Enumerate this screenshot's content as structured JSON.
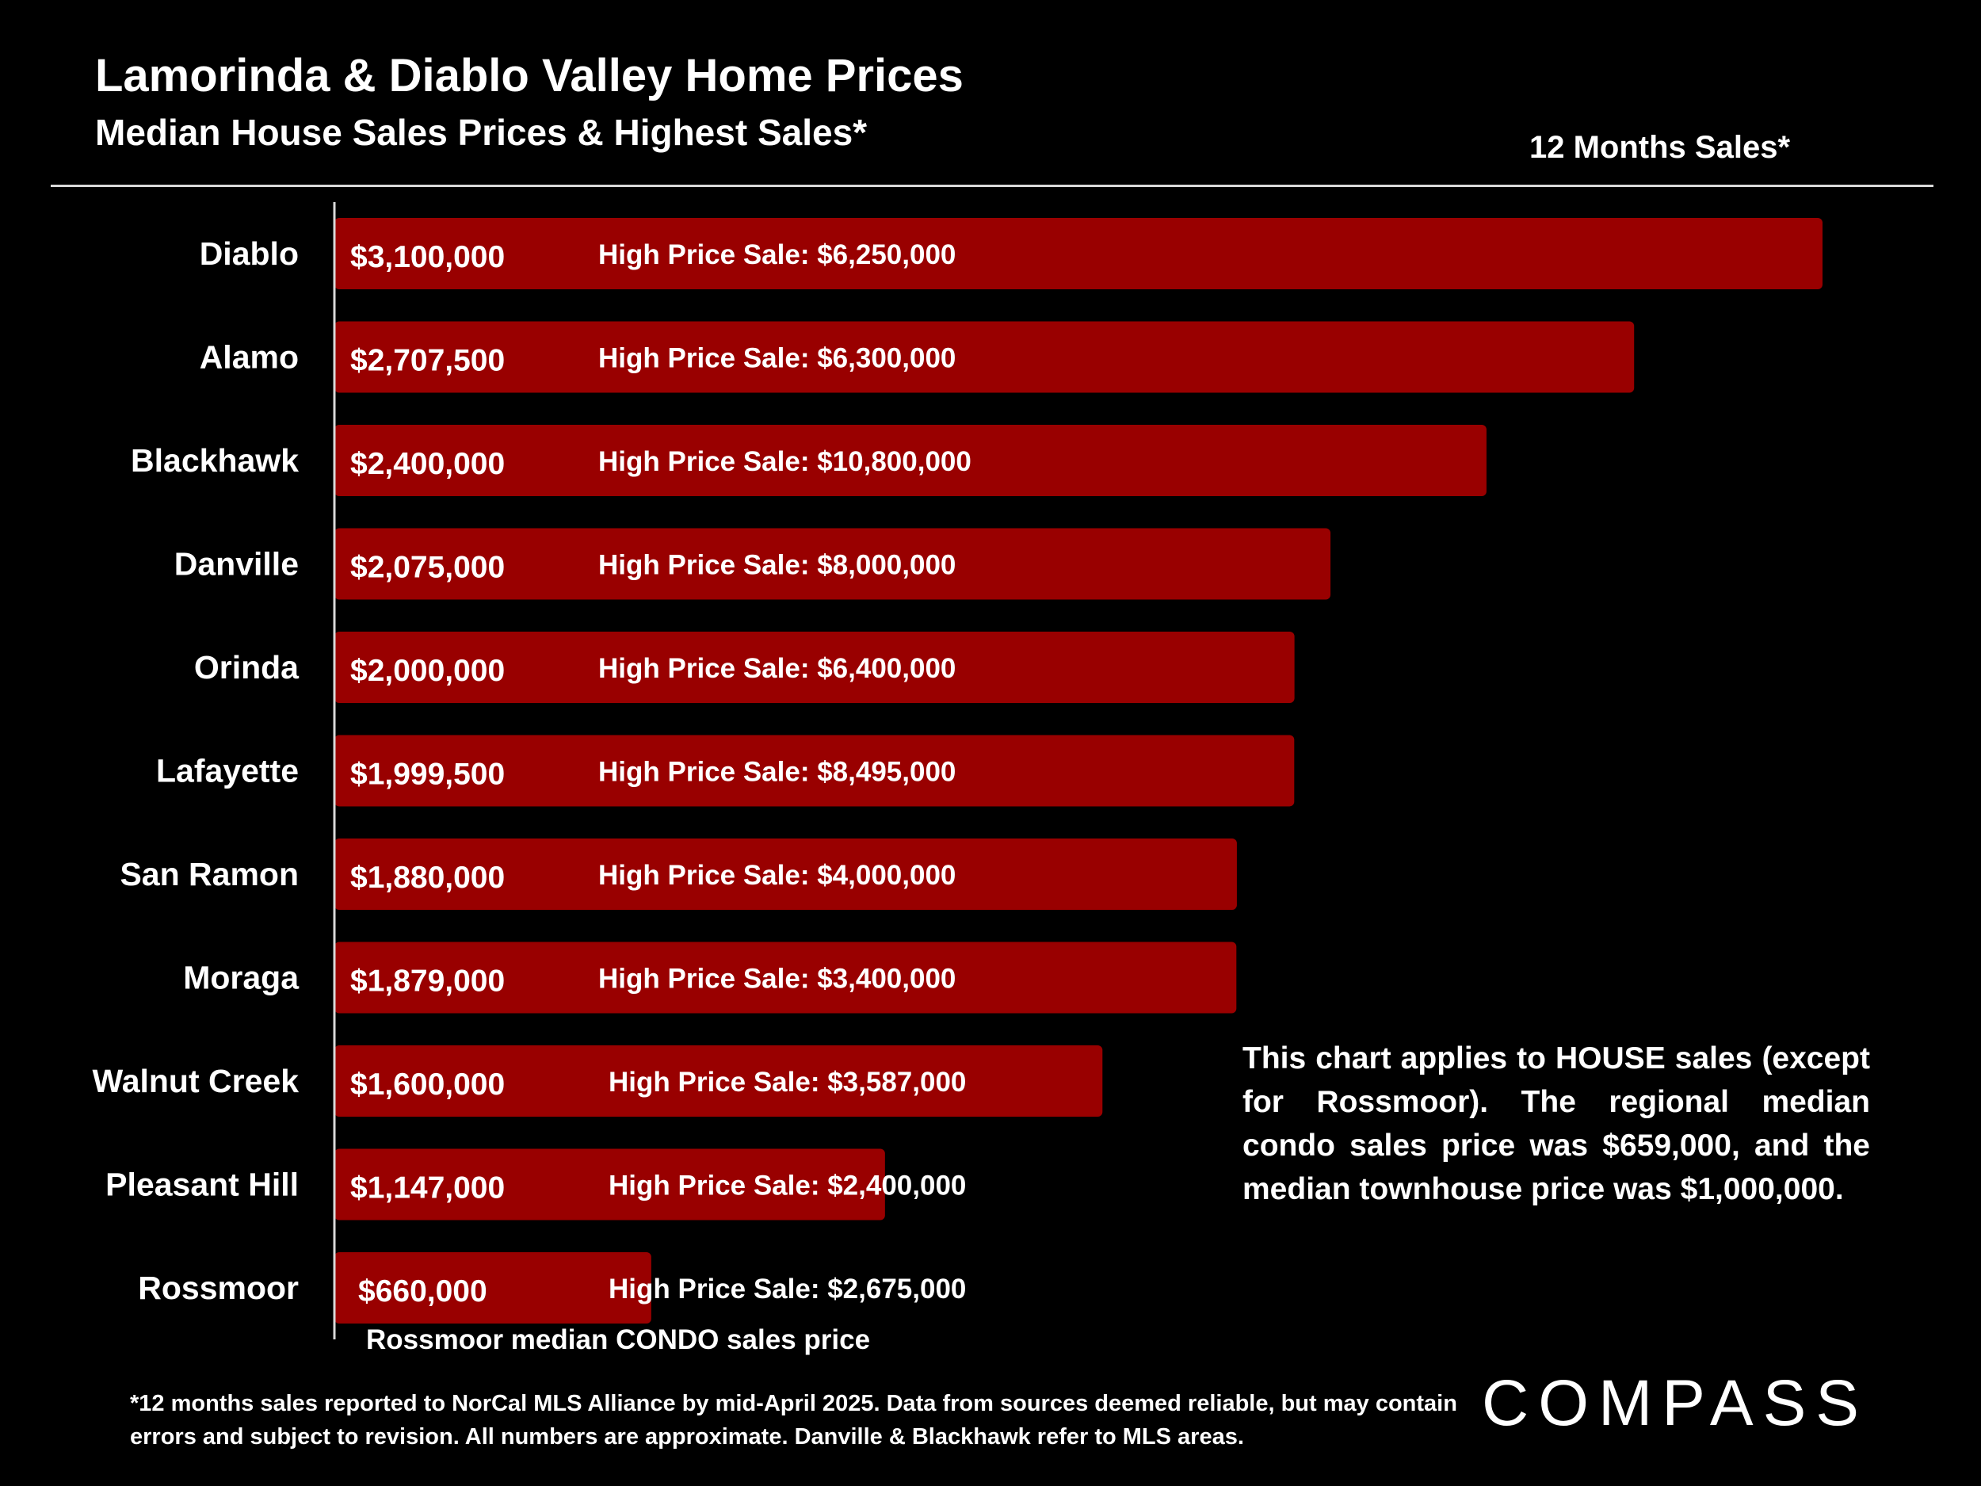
{
  "header": {
    "title": "Lamorinda & Diablo Valley Home Prices",
    "subtitle": "Median House Sales Prices & Highest Sales*",
    "period": "12 Months Sales*"
  },
  "chart_data": {
    "type": "bar",
    "orientation": "horizontal",
    "title": "Lamorinda & Diablo Valley Home Prices",
    "subtitle": "Median House Sales Prices & Highest Sales*",
    "xlabel": "",
    "ylabel": "",
    "xlim": [
      0,
      3100000
    ],
    "categories": [
      "Diablo",
      "Alamo",
      "Blackhawk",
      "Danville",
      "Orinda",
      "Lafayette",
      "San Ramon",
      "Moraga",
      "Walnut Creek",
      "Pleasant Hill",
      "Rossmoor"
    ],
    "values": [
      3100000,
      2707500,
      2400000,
      2075000,
      2000000,
      1999500,
      1880000,
      1879000,
      1600000,
      1147000,
      660000
    ],
    "value_labels": [
      "$3,100,000",
      "$2,707,500",
      "$2,400,000",
      "$2,075,000",
      "$2,000,000",
      "$1,999,500",
      "$1,880,000",
      "$1,879,000",
      "$1,600,000",
      "$1,147,000",
      "$660,000"
    ],
    "high_sales": [
      6250000,
      6300000,
      10800000,
      8000000,
      6400000,
      8495000,
      4000000,
      3400000,
      3587000,
      2400000,
      2675000
    ],
    "high_sale_labels": [
      "High Price Sale:  $6,250,000",
      "High Price Sale:  $6,300,000",
      "High Price Sale:  $10,800,000",
      "High Price Sale:  $8,000,000",
      "High Price Sale:  $6,400,000",
      "High Price Sale:  $8,495,000",
      "High Price Sale:  $4,000,000",
      "High Price Sale:  $3,400,000",
      "High Price Sale:  $3,587,000",
      "High Price Sale:  $2,400,000",
      "High Price Sale:  $2,675,000"
    ],
    "annotation": "Rossmoor median CONDO sales price",
    "bar_color": "#990000"
  },
  "note": "This chart applies to HOUSE sales (except for Rossmoor). The regional median condo sales price was $659,000, and the median townhouse price was $1,000,000.",
  "footnote": "*12 months sales reported to NorCal MLS Alliance by mid-April 2025. Data from sources deemed reliable, but may contain errors and subject to revision. All numbers are approximate. Danville & Blackhawk refer to MLS areas.",
  "logo": "COMPASS"
}
